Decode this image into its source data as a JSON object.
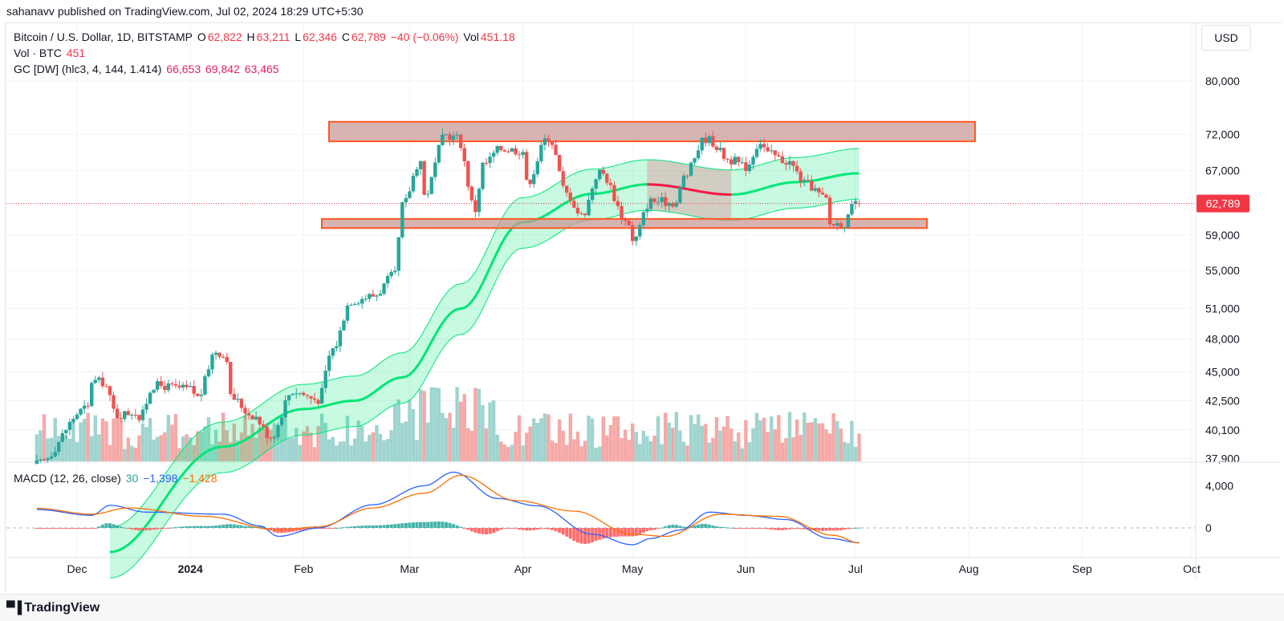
{
  "publisher": {
    "text": "sahanavv published on TradingView.com, Jul 02, 2024 18:29 UTC+5:30"
  },
  "symbol_legend": {
    "name": "Bitcoin / U.S. Dollar, 1D, BITSTAMP",
    "o_label": "O",
    "o_value": "62,822",
    "h_label": "H",
    "h_value": "63,211",
    "l_label": "L",
    "l_value": "62,346",
    "c_label": "C",
    "c_value": "62,789",
    "change": "−40 (−0.06%)",
    "vol_label": "Vol",
    "vol_value": "451.18"
  },
  "vol_legend": {
    "label": "Vol · BTC",
    "value": "451"
  },
  "gc_legend": {
    "label": "GC [DW] (hlc3, 4, 144, 1.414)",
    "v1": "66,653",
    "v2": "69,842",
    "v3": "63,465"
  },
  "macd_legend": {
    "label": "MACD (12, 26, close)",
    "hist": "30",
    "macd": "−1,398",
    "signal": "−1,428"
  },
  "currency_button": "USD",
  "last_price_label": "62,789",
  "footer": {
    "brand": "TradingView"
  },
  "colors": {
    "up": "#26a69a",
    "down": "#ef5350",
    "up_vol": "#9fd4cf",
    "down_vol": "#f5a9a7",
    "gc_up": "#00e676",
    "gc_down": "#ff1744",
    "macd": "#2962ff",
    "signal": "#ff6d00",
    "zone_stroke": "#ff5722",
    "zone_fill": "#c99a97"
  },
  "chart_data": {
    "type": "candlestick",
    "price_axis": {
      "scale": "log",
      "ticks": [
        "80,000",
        "72,000",
        "67,000",
        "62,789",
        "59,000",
        "55,000",
        "51,000",
        "48,000",
        "45,000",
        "42,500",
        "40,100",
        "37,900"
      ]
    },
    "time_axis": {
      "ticks": [
        "Dec",
        "2024",
        "Feb",
        "Mar",
        "Apr",
        "May",
        "Jun",
        "Jul",
        "Aug",
        "Sep",
        "Oct"
      ]
    },
    "last_price": 62789,
    "resistance_zone": [
      71000,
      73800
    ],
    "support_zone": [
      59800,
      60900
    ],
    "ohlc_anchors": [
      [
        "2023-11-20",
        37500
      ],
      [
        "2023-12-04",
        41900
      ],
      [
        "2023-12-05",
        44200
      ],
      [
        "2023-12-08",
        44100
      ],
      [
        "2023-12-12",
        41300
      ],
      [
        "2023-12-17",
        41600
      ],
      [
        "2023-12-18",
        41000
      ],
      [
        "2023-12-22",
        43800
      ],
      [
        "2024-01-01",
        43500
      ],
      [
        "2024-01-03",
        42800
      ],
      [
        "2024-01-08",
        46900
      ],
      [
        "2024-01-11",
        46300
      ],
      [
        "2024-01-12",
        42800
      ],
      [
        "2024-01-18",
        41300
      ],
      [
        "2024-01-23",
        39600
      ],
      [
        "2024-01-29",
        43300
      ],
      [
        "2024-02-05",
        42600
      ],
      [
        "2024-02-09",
        47100
      ],
      [
        "2024-02-14",
        51800
      ],
      [
        "2024-02-20",
        52300
      ],
      [
        "2024-02-26",
        54500
      ],
      [
        "2024-02-28",
        62500
      ],
      [
        "2024-03-04",
        68300
      ],
      [
        "2024-03-05",
        63800
      ],
      [
        "2024-03-11",
        71900
      ],
      [
        "2024-03-14",
        71500
      ],
      [
        "2024-03-19",
        62000
      ],
      [
        "2024-03-21",
        67800
      ],
      [
        "2024-03-26",
        70000
      ],
      [
        "2024-04-01",
        69700
      ],
      [
        "2024-04-02",
        65400
      ],
      [
        "2024-04-08",
        71600
      ],
      [
        "2024-04-13",
        64000
      ],
      [
        "2024-04-17",
        61300
      ],
      [
        "2024-04-22",
        66800
      ],
      [
        "2024-04-30",
        60400
      ],
      [
        "2024-05-01",
        58200
      ],
      [
        "2024-05-06",
        63100
      ],
      [
        "2024-05-13",
        62900
      ],
      [
        "2024-05-15",
        66200
      ],
      [
        "2024-05-21",
        71400
      ],
      [
        "2024-05-28",
        68400
      ],
      [
        "2024-06-01",
        67500
      ],
      [
        "2024-06-05",
        71000
      ],
      [
        "2024-06-07",
        69300
      ],
      [
        "2024-06-12",
        68300
      ],
      [
        "2024-06-18",
        65100
      ],
      [
        "2024-06-23",
        63300
      ],
      [
        "2024-06-24",
        60300
      ],
      [
        "2024-06-28",
        60400
      ],
      [
        "2024-07-01",
        62822
      ],
      [
        "2024-07-02",
        62789
      ]
    ],
    "gc_center_anchors": [
      [
        "2023-12-10",
        31500
      ],
      [
        "2024-01-10",
        38800
      ],
      [
        "2024-02-01",
        41800
      ],
      [
        "2024-02-15",
        42500
      ],
      [
        "2024-02-28",
        44500
      ],
      [
        "2024-03-15",
        51000
      ],
      [
        "2024-04-01",
        60500
      ],
      [
        "2024-04-20",
        64000
      ],
      [
        "2024-05-05",
        65200
      ],
      [
        "2024-05-28",
        63900
      ],
      [
        "2024-06-15",
        65500
      ],
      [
        "2024-07-02",
        66653
      ]
    ],
    "gc_band_width_pct": 5.0,
    "gc_red_period": [
      "2024-05-05",
      "2024-05-28"
    ],
    "volume_note": "relative daily volume bars (BTC)",
    "macd": {
      "axis_ticks": [
        "4,000",
        "0"
      ],
      "anchors_macd": [
        [
          "2023-11-20",
          1750
        ],
        [
          "2023-12-05",
          1200
        ],
        [
          "2023-12-10",
          2150
        ],
        [
          "2023-12-20",
          1500
        ],
        [
          "2024-01-10",
          1300
        ],
        [
          "2024-01-20",
          200
        ],
        [
          "2024-01-25",
          -800
        ],
        [
          "2024-02-05",
          0
        ],
        [
          "2024-02-20",
          2200
        ],
        [
          "2024-03-05",
          4000
        ],
        [
          "2024-03-13",
          5300
        ],
        [
          "2024-03-25",
          2800
        ],
        [
          "2024-04-05",
          2100
        ],
        [
          "2024-04-20",
          -600
        ],
        [
          "2024-05-01",
          -1600
        ],
        [
          "2024-05-06",
          -1000
        ],
        [
          "2024-05-14",
          -200
        ],
        [
          "2024-05-22",
          1500
        ],
        [
          "2024-06-01",
          1200
        ],
        [
          "2024-06-12",
          800
        ],
        [
          "2024-06-24",
          -1000
        ],
        [
          "2024-07-02",
          -1398
        ]
      ],
      "anchors_signal": [
        [
          "2023-11-20",
          1850
        ],
        [
          "2023-12-05",
          1300
        ],
        [
          "2023-12-15",
          1900
        ],
        [
          "2024-01-05",
          1100
        ],
        [
          "2024-01-25",
          -200
        ],
        [
          "2024-02-05",
          100
        ],
        [
          "2024-02-20",
          1900
        ],
        [
          "2024-03-05",
          3300
        ],
        [
          "2024-03-15",
          5000
        ],
        [
          "2024-03-30",
          2600
        ],
        [
          "2024-04-15",
          1600
        ],
        [
          "2024-05-01",
          -600
        ],
        [
          "2024-05-10",
          -800
        ],
        [
          "2024-05-25",
          1300
        ],
        [
          "2024-06-10",
          1100
        ],
        [
          "2024-06-25",
          -700
        ],
        [
          "2024-07-02",
          -1428
        ]
      ],
      "range": [
        -2400,
        6000
      ]
    }
  }
}
